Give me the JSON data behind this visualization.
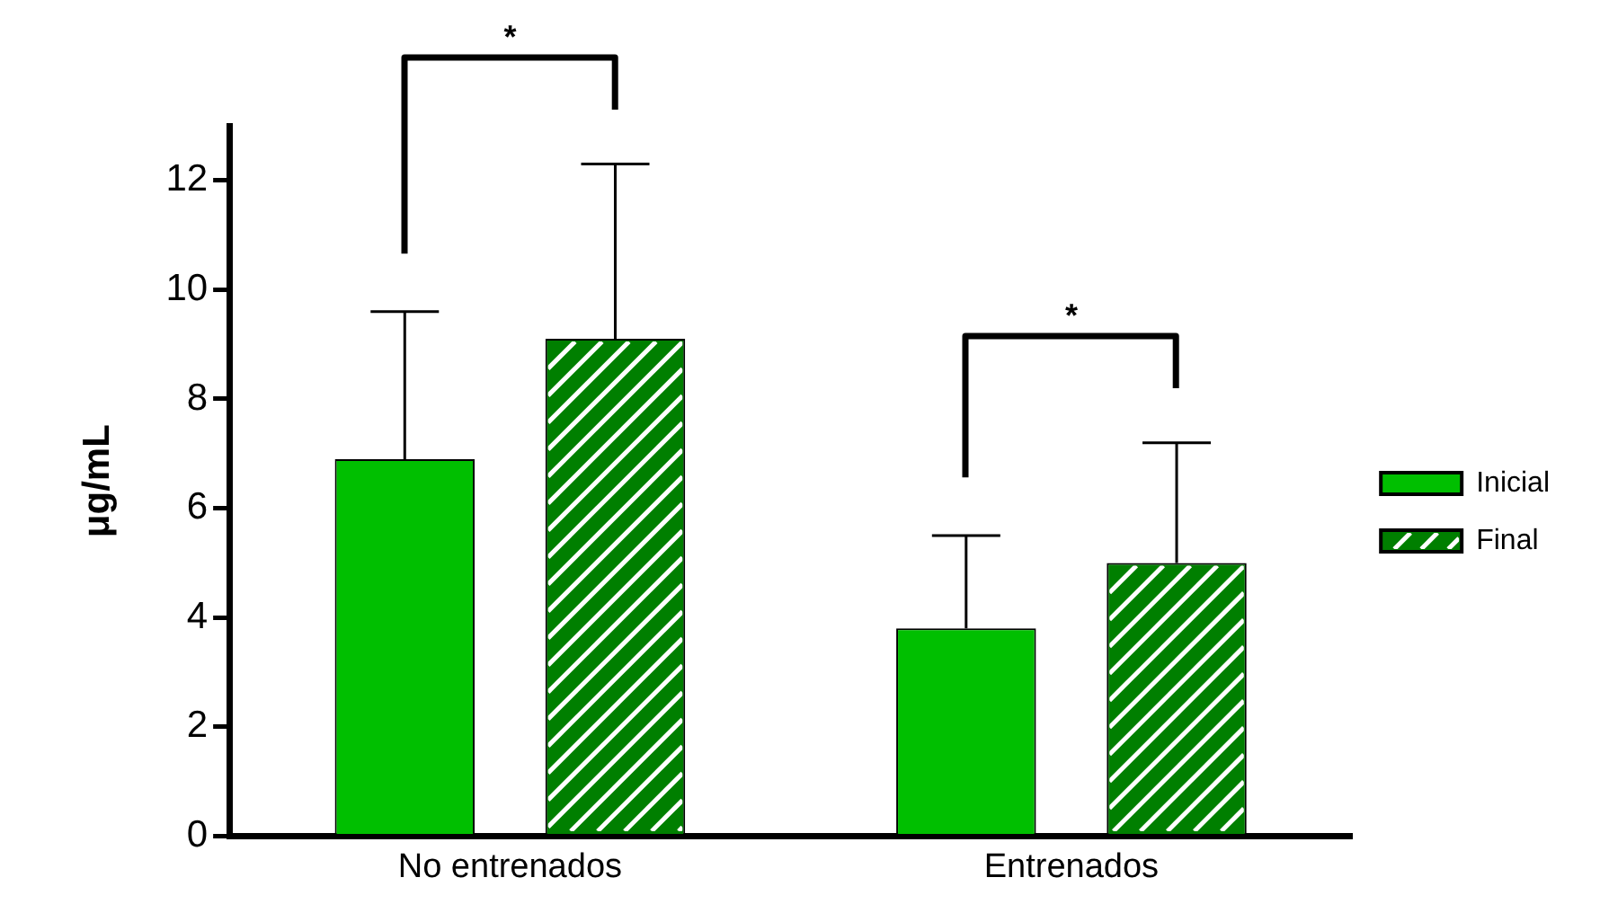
{
  "chart_data": {
    "type": "bar",
    "ylabel": "μg/mL",
    "categories": [
      "No entrenados",
      "Entrenados"
    ],
    "series": [
      {
        "name": "Inicial",
        "color": "#00bf00",
        "values": [
          6.9,
          3.8
        ],
        "errors": [
          [
            6.9,
            9.6
          ],
          [
            3.8,
            5.5
          ]
        ]
      },
      {
        "name": "Final",
        "color": "#007f00",
        "values": [
          9.1,
          5.0
        ],
        "errors": [
          [
            9.1,
            12.3
          ],
          [
            5.0,
            7.2
          ]
        ]
      }
    ],
    "ylim": [
      0,
      13
    ],
    "yticks": [
      0,
      2,
      4,
      6,
      8,
      10,
      12
    ],
    "grid": false,
    "legend": "right",
    "annotations": [
      "*",
      "*"
    ]
  }
}
